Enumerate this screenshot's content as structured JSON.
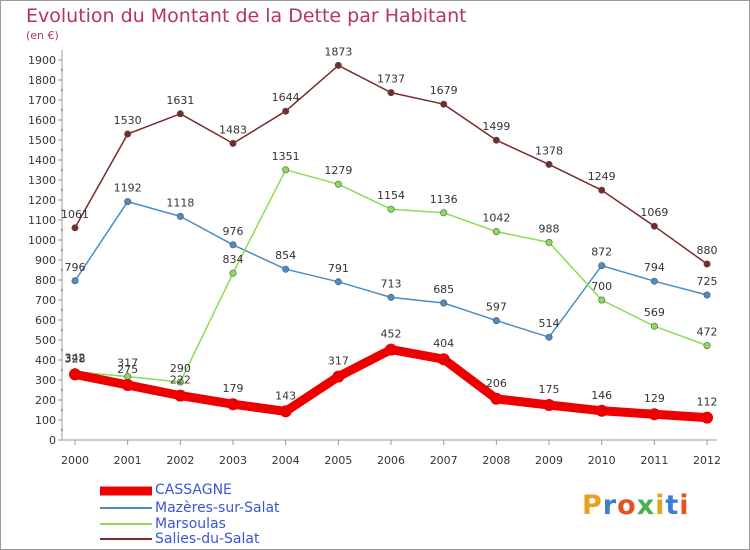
{
  "title": "Evolution du Montant de la Dette par Habitant",
  "subtitle": "(en €)",
  "brand": "Proxiti",
  "chart_data": {
    "type": "line",
    "x": [
      "2000",
      "2001",
      "2002",
      "2003",
      "2004",
      "2005",
      "2006",
      "2007",
      "2008",
      "2009",
      "2010",
      "2011",
      "2012"
    ],
    "ylim": [
      0,
      1900
    ],
    "yticks": [
      0,
      100,
      200,
      300,
      400,
      500,
      600,
      700,
      800,
      900,
      1000,
      1100,
      1200,
      1300,
      1400,
      1500,
      1600,
      1700,
      1800,
      1900
    ],
    "grid": false,
    "legend": "bottom-left",
    "series": [
      {
        "name": "CASSAGNE",
        "color": "#ee0000",
        "values": [
          328,
          275,
          222,
          179,
          143,
          317,
          452,
          404,
          206,
          175,
          146,
          129,
          112
        ]
      },
      {
        "name": "Mazères-sur-Salat",
        "color": "#4a8ec8",
        "values": [
          796,
          1192,
          1118,
          976,
          854,
          791,
          713,
          685,
          597,
          514,
          872,
          794,
          725
        ]
      },
      {
        "name": "Marsoulas",
        "color": "#88dd55",
        "values": [
          342,
          317,
          290,
          834,
          1351,
          1279,
          1154,
          1136,
          1042,
          988,
          700,
          569,
          472
        ]
      },
      {
        "name": "Salies-du-Salat",
        "color": "#7a2a2a",
        "values": [
          1061,
          1530,
          1631,
          1483,
          1644,
          1873,
          1737,
          1679,
          1499,
          1378,
          1249,
          1069,
          880
        ]
      }
    ]
  }
}
